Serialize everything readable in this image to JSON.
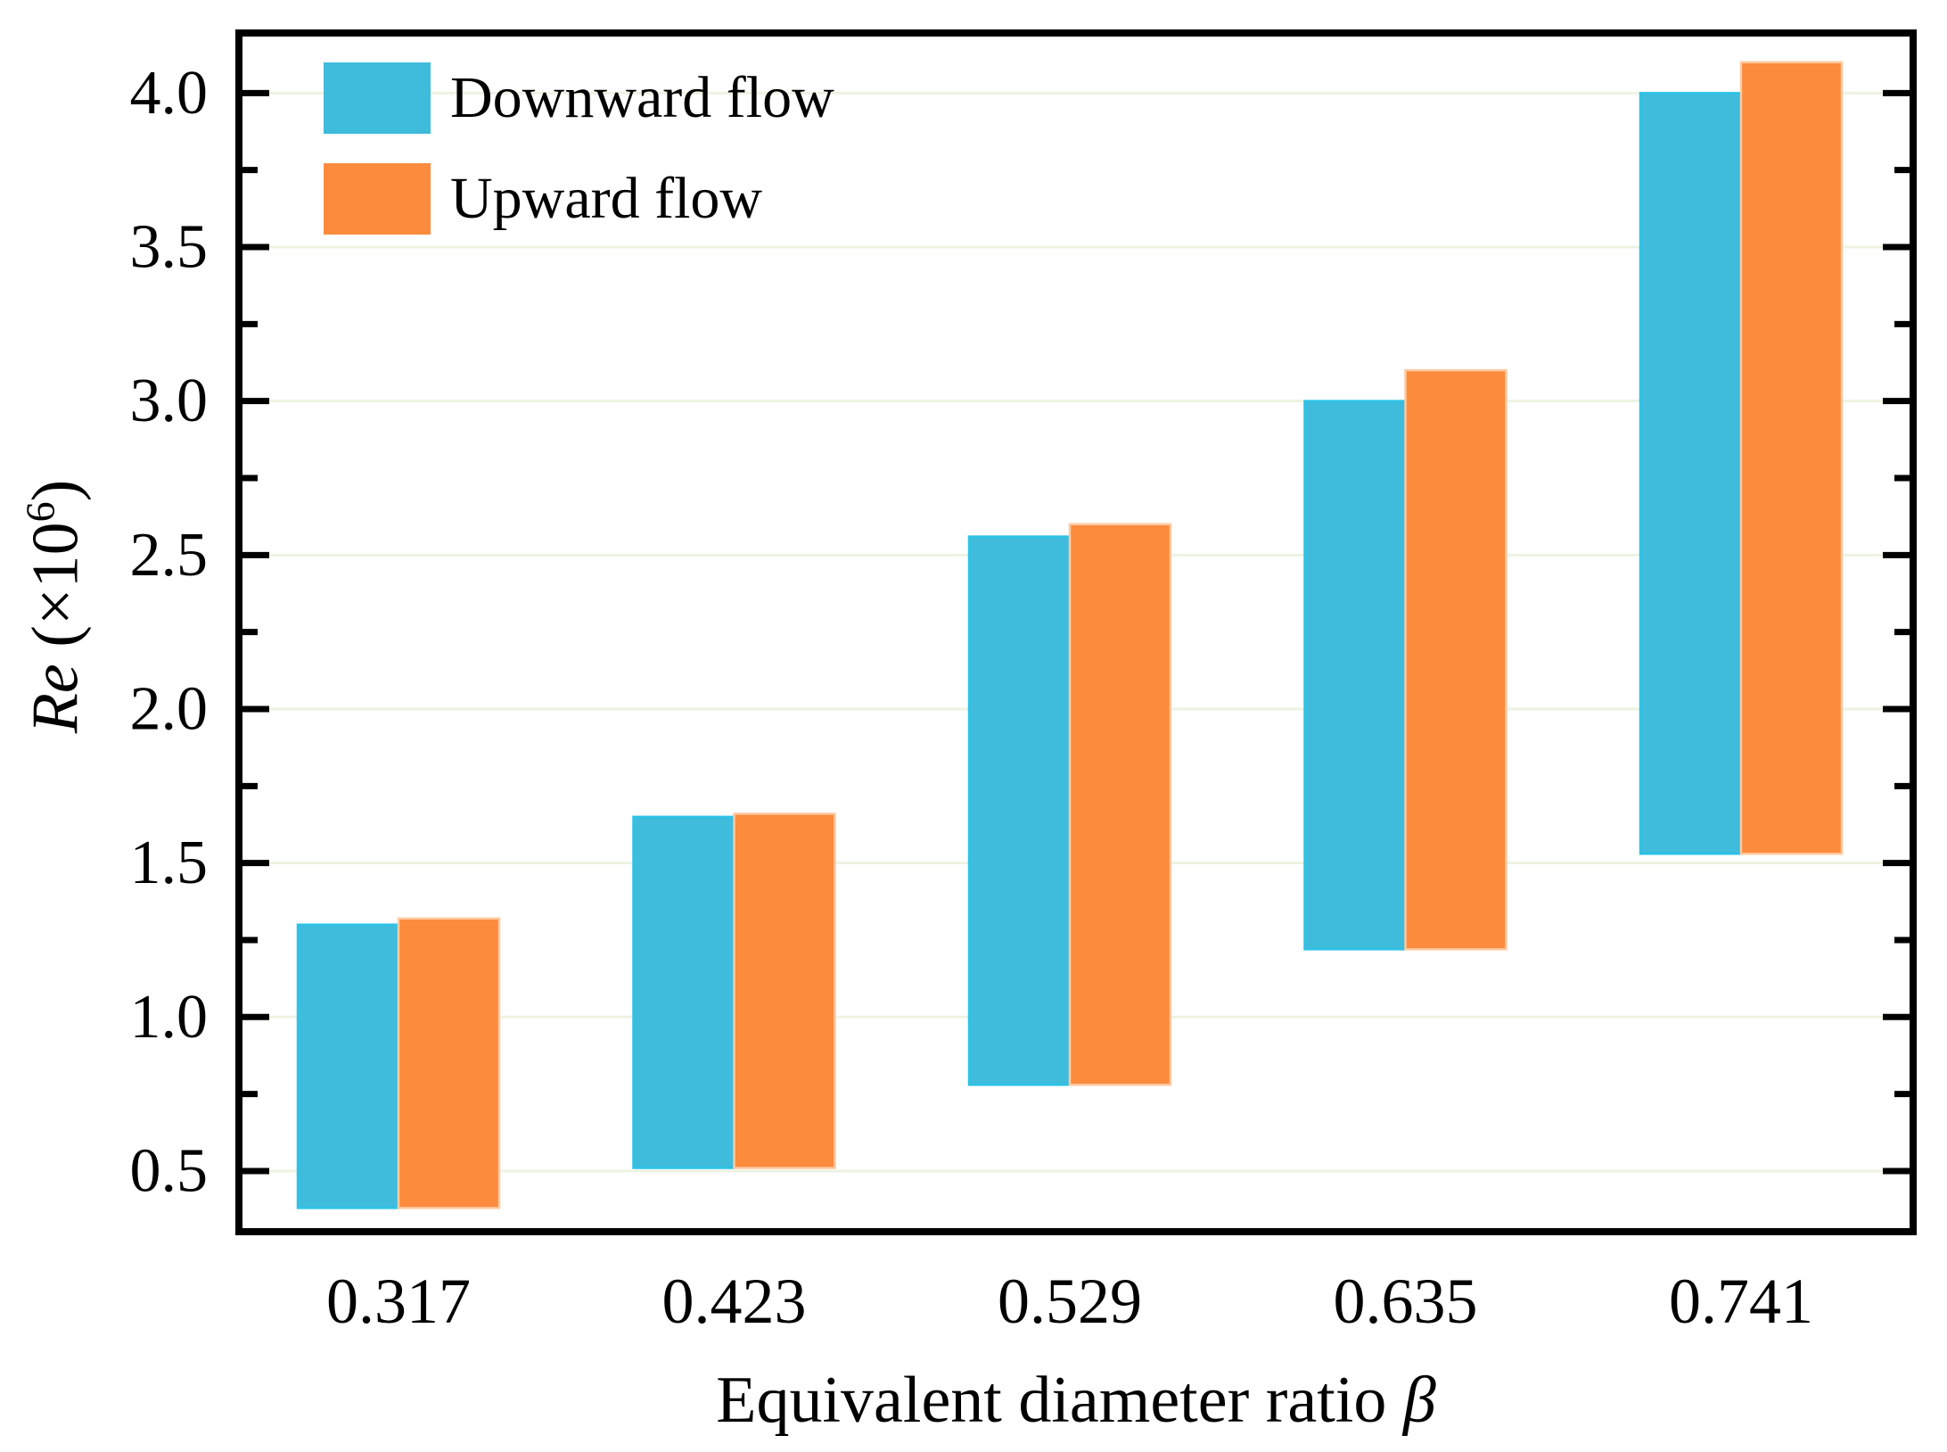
{
  "chart_data": {
    "type": "bar",
    "subtype": "floating-range-bars",
    "title": "",
    "xlabel": "Equivalent diameter ratio β",
    "xlabel_text": "Equivalent diameter ratio",
    "xlabel_symbol": "β",
    "ylabel": "Re (×10⁶)",
    "ylabel_italic": "Re",
    "ylabel_pre": "(×10",
    "ylabel_sup": "6",
    "ylabel_post": ")",
    "categories": [
      "0.317",
      "0.423",
      "0.529",
      "0.635",
      "0.741"
    ],
    "series": [
      {
        "name": "Downward flow",
        "color": "#3fbbdc",
        "edge_color": "#2cc3e7",
        "ranges": [
          [
            0.38,
            1.3
          ],
          [
            0.51,
            1.65
          ],
          [
            0.78,
            2.56
          ],
          [
            1.22,
            3.0
          ],
          [
            1.53,
            4.0
          ]
        ]
      },
      {
        "name": "Upward flow",
        "color": "#fc8b3e",
        "edge_color": "#ffc9a0",
        "ranges": [
          [
            0.38,
            1.32
          ],
          [
            0.51,
            1.66
          ],
          [
            0.78,
            2.6
          ],
          [
            1.22,
            3.1
          ],
          [
            1.53,
            4.1
          ]
        ]
      }
    ],
    "y_major_ticks": [
      0.5,
      1.0,
      1.5,
      2.0,
      2.5,
      3.0,
      3.5,
      4.0
    ],
    "y_tick_labels": [
      "0.5",
      "1.0",
      "1.5",
      "2.0",
      "2.5",
      "3.0",
      "3.5",
      "4.0"
    ],
    "y_minor_step": 0.25,
    "ylim": [
      0.303,
      4.195
    ],
    "grid": "horizontal-major",
    "grid_color": "#edf3e2",
    "axis_color": "#000000",
    "legend_position": "top-left-inside"
  },
  "legend": {
    "items": [
      {
        "label": "Downward flow",
        "color": "#3fbbdc"
      },
      {
        "label": "Upward flow",
        "color": "#fc8b3e"
      }
    ]
  }
}
